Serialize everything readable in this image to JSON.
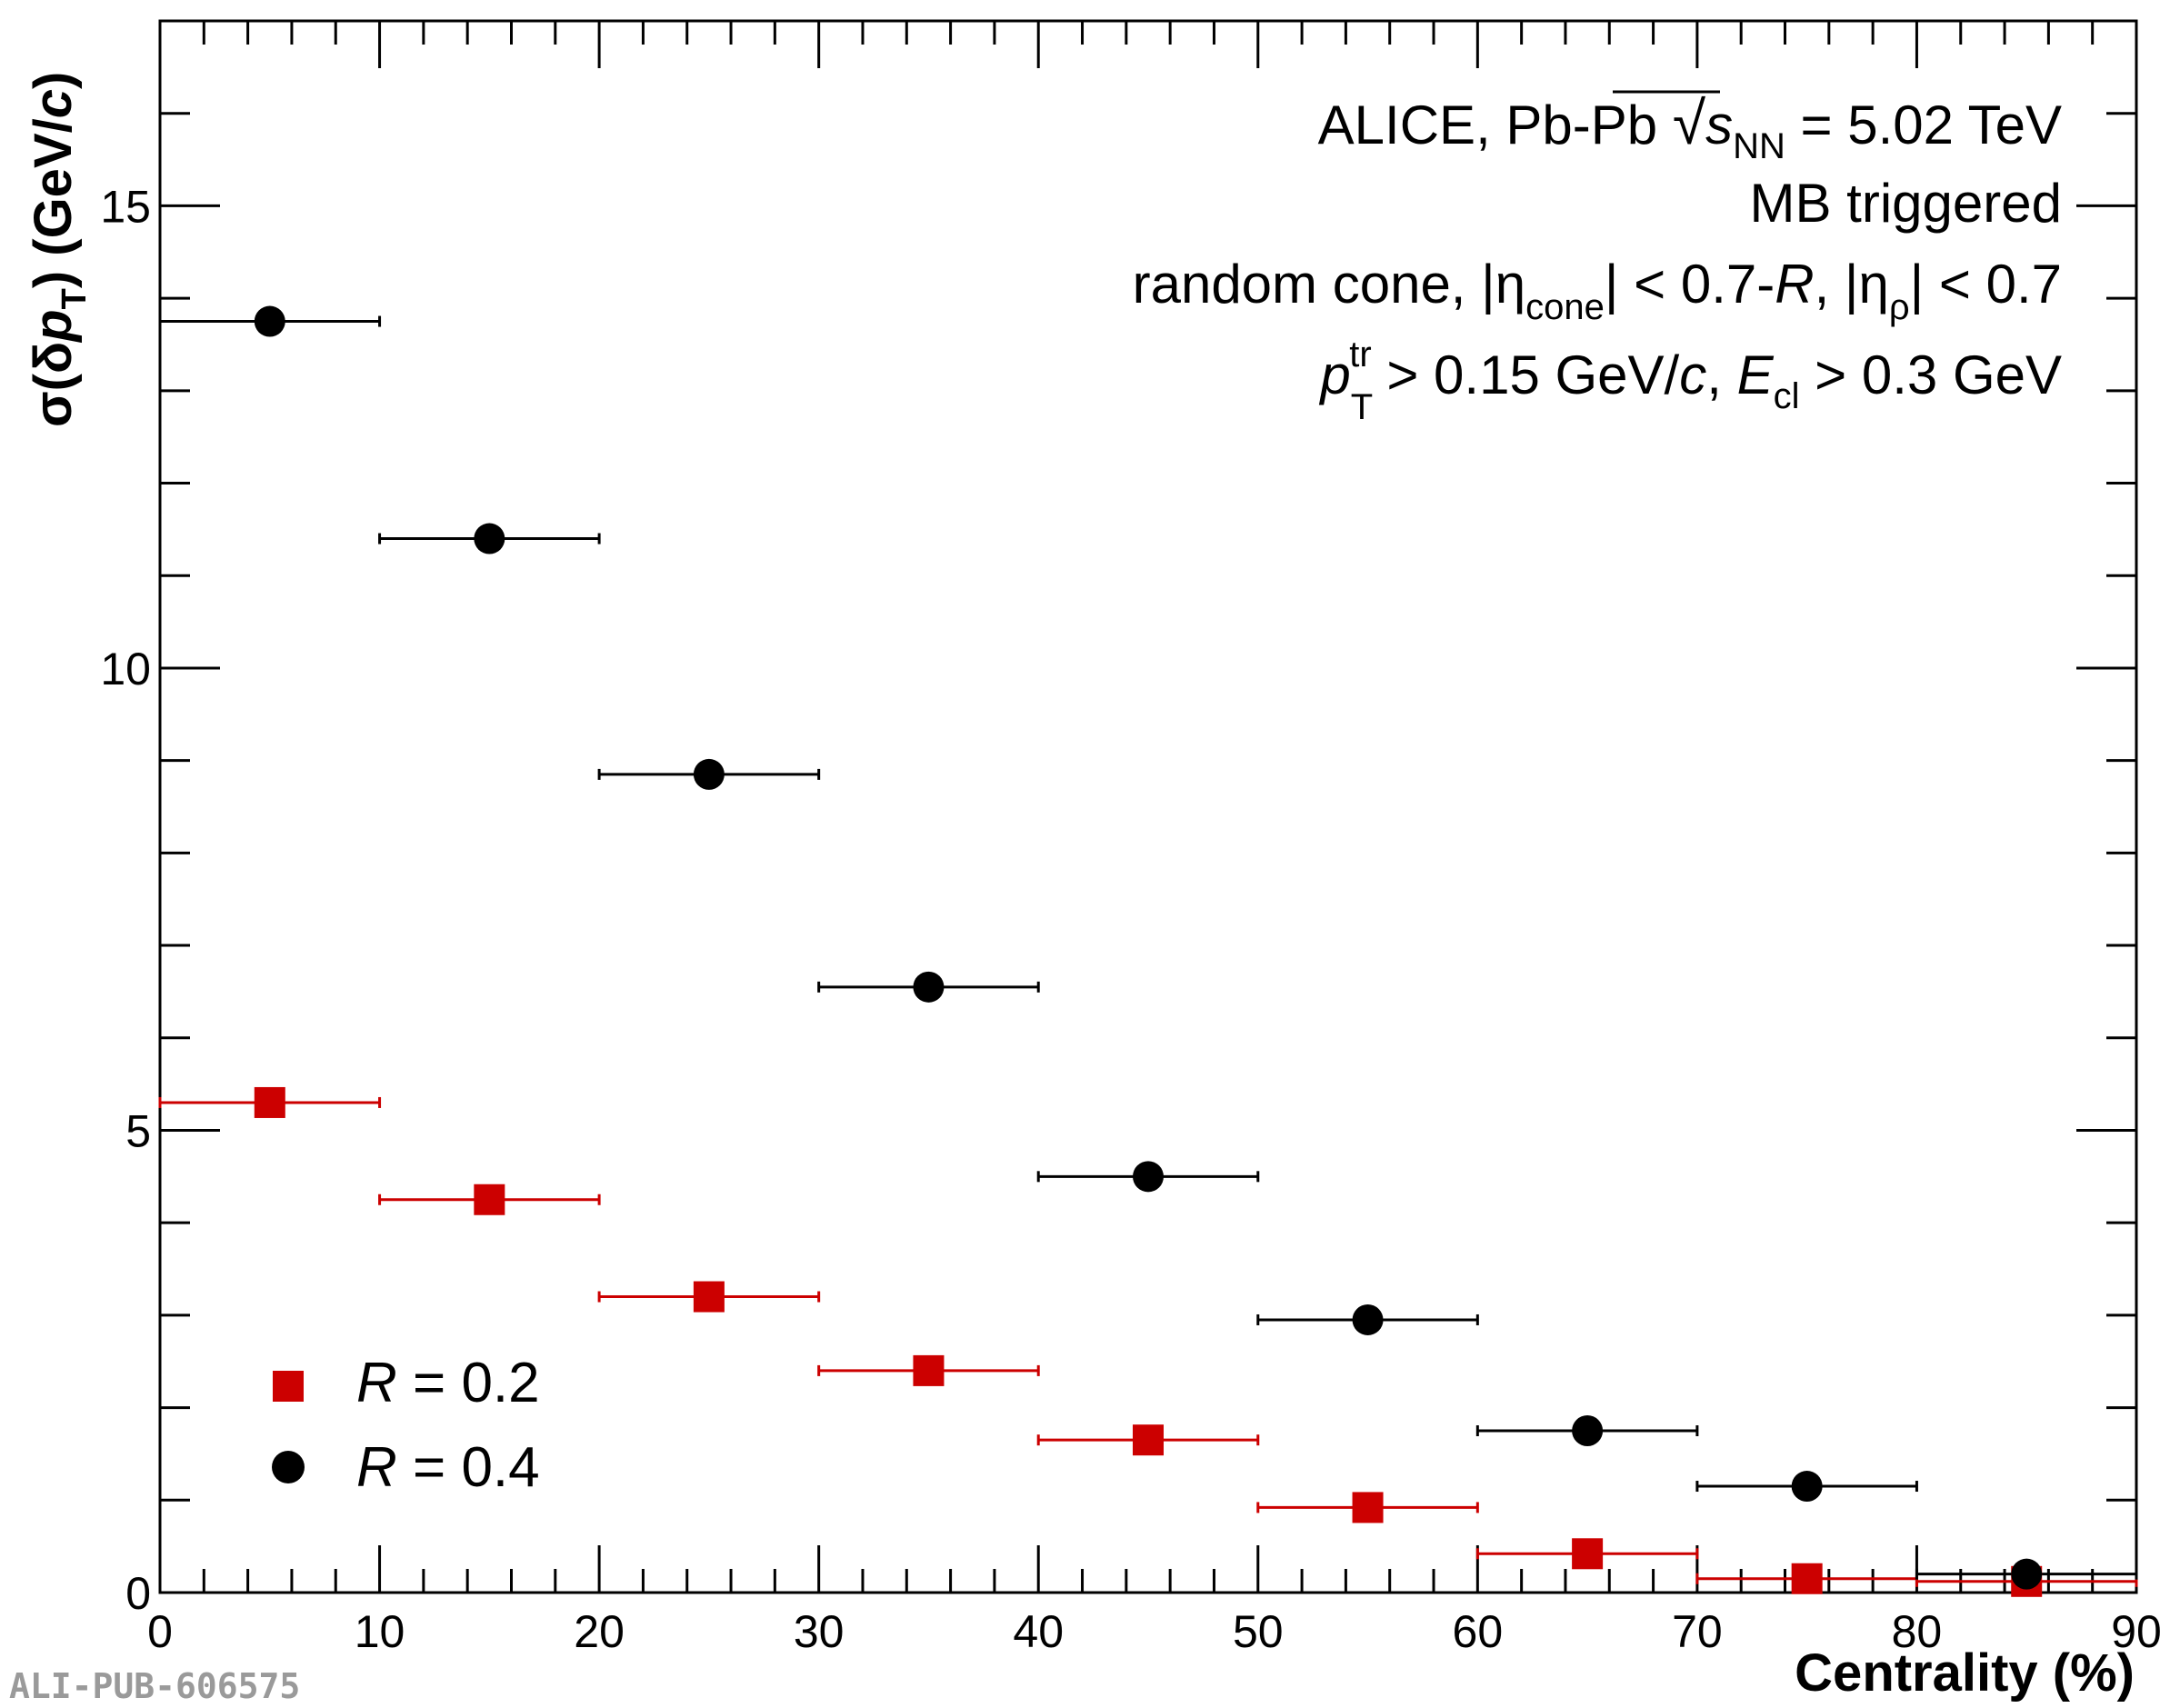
{
  "chart_data": {
    "type": "scatter",
    "xlabel": "Centrality (%)",
    "ylabel": {
      "pre": "σ(δ",
      "p": "p",
      "p_sub": "T",
      "post": ") (GeV/",
      "c": "c",
      "close": ")"
    },
    "xlim": [
      0,
      90
    ],
    "ylim": [
      0,
      17
    ],
    "x_ticks": [
      "0",
      "10",
      "20",
      "30",
      "40",
      "50",
      "60",
      "70",
      "80",
      "90"
    ],
    "y_ticks": [
      "0",
      "5",
      "10",
      "15"
    ],
    "grid": false,
    "legend_position": "bottom-left",
    "annotations": {
      "line1_pre": "ALICE, Pb-Pb ",
      "line1_s": "s",
      "line1_nn": "NN",
      "line1_post": " = 5.02 TeV",
      "line2": "MB triggered",
      "line3_pre": "random cone, |η",
      "line3_cone": "cone",
      "line3_mid": "| < 0.7-",
      "line3_R": "R",
      "line3_mid2": ", |η",
      "line3_rho": "ρ",
      "line3_post": "| < 0.7",
      "line4_p": "p",
      "line4_T": "T",
      "line4_tr": "tr",
      "line4_mid": " > 0.15 GeV/",
      "line4_c": "c",
      "line4_mid2": ", ",
      "line4_E": "E",
      "line4_cl": "cl",
      "line4_post": " > 0.3 GeV"
    },
    "series": [
      {
        "name": "R = 0.2",
        "name_R": "R",
        "name_rest": " = 0.2",
        "marker": "square",
        "color": "#cc0000",
        "x": [
          5,
          15,
          25,
          35,
          45,
          55,
          65,
          75,
          85
        ],
        "xerr": [
          5,
          5,
          5,
          5,
          5,
          5,
          5,
          5,
          5
        ],
        "y": [
          5.3,
          4.25,
          3.2,
          2.4,
          1.65,
          0.92,
          0.42,
          0.15,
          0.12
        ]
      },
      {
        "name": "R = 0.4",
        "name_R": "R",
        "name_rest": " = 0.4",
        "marker": "circle",
        "color": "#000000",
        "x": [
          5,
          15,
          25,
          35,
          45,
          55,
          65,
          75,
          85
        ],
        "xerr": [
          5,
          5,
          5,
          5,
          5,
          5,
          5,
          5,
          5
        ],
        "y": [
          13.75,
          11.4,
          8.85,
          6.55,
          4.5,
          2.95,
          1.75,
          1.15,
          0.2
        ]
      }
    ]
  },
  "watermark": "ALI-PUB-606575"
}
